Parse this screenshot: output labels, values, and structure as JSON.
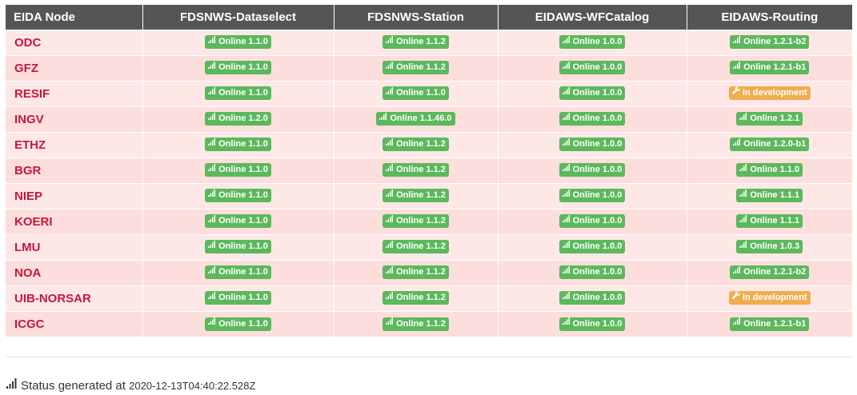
{
  "table": {
    "headers": [
      "EIDA Node",
      "FDSNWS-Dataselect",
      "FDSNWS-Station",
      "EIDAWS-WFCatalog",
      "EIDAWS-Routing"
    ],
    "rows": [
      {
        "node": "ODC",
        "cells": [
          {
            "text": "Online 1.1.0",
            "status": "online",
            "icon": "signal-icon"
          },
          {
            "text": "Online 1.1.2",
            "status": "online",
            "icon": "signal-icon"
          },
          {
            "text": "Online 1.0.0",
            "status": "online",
            "icon": "signal-icon"
          },
          {
            "text": "Online 1.2.1-b2",
            "status": "online",
            "icon": "signal-icon"
          }
        ]
      },
      {
        "node": "GFZ",
        "cells": [
          {
            "text": "Online 1.1.0",
            "status": "online",
            "icon": "signal-icon"
          },
          {
            "text": "Online 1.1.2",
            "status": "online",
            "icon": "signal-icon"
          },
          {
            "text": "Online 1.0.0",
            "status": "online",
            "icon": "signal-icon"
          },
          {
            "text": "Online 1.2.1-b1",
            "status": "online",
            "icon": "signal-icon"
          }
        ]
      },
      {
        "node": "RESIF",
        "cells": [
          {
            "text": "Online 1.1.0",
            "status": "online",
            "icon": "signal-icon"
          },
          {
            "text": "Online 1.1.0",
            "status": "online",
            "icon": "signal-icon"
          },
          {
            "text": "Online 1.0.0",
            "status": "online",
            "icon": "signal-icon"
          },
          {
            "text": "In development",
            "status": "dev",
            "icon": "wrench-icon"
          }
        ]
      },
      {
        "node": "INGV",
        "cells": [
          {
            "text": "Online 1.2.0",
            "status": "online",
            "icon": "signal-icon"
          },
          {
            "text": "Online 1.1.46.0",
            "status": "online",
            "icon": "signal-icon"
          },
          {
            "text": "Online 1.0.0",
            "status": "online",
            "icon": "signal-icon"
          },
          {
            "text": "Online 1.2.1",
            "status": "online",
            "icon": "signal-icon"
          }
        ]
      },
      {
        "node": "ETHZ",
        "cells": [
          {
            "text": "Online 1.1.0",
            "status": "online",
            "icon": "signal-icon"
          },
          {
            "text": "Online 1.1.2",
            "status": "online",
            "icon": "signal-icon"
          },
          {
            "text": "Online 1.0.0",
            "status": "online",
            "icon": "signal-icon"
          },
          {
            "text": "Online 1.2.0-b1",
            "status": "online",
            "icon": "signal-icon"
          }
        ]
      },
      {
        "node": "BGR",
        "cells": [
          {
            "text": "Online 1.1.0",
            "status": "online",
            "icon": "signal-icon"
          },
          {
            "text": "Online 1.1.2",
            "status": "online",
            "icon": "signal-icon"
          },
          {
            "text": "Online 1.0.0",
            "status": "online",
            "icon": "signal-icon"
          },
          {
            "text": "Online 1.1.0",
            "status": "online",
            "icon": "signal-icon"
          }
        ]
      },
      {
        "node": "NIEP",
        "cells": [
          {
            "text": "Online 1.1.0",
            "status": "online",
            "icon": "signal-icon"
          },
          {
            "text": "Online 1.1.2",
            "status": "online",
            "icon": "signal-icon"
          },
          {
            "text": "Online 1.0.0",
            "status": "online",
            "icon": "signal-icon"
          },
          {
            "text": "Online 1.1.1",
            "status": "online",
            "icon": "signal-icon"
          }
        ]
      },
      {
        "node": "KOERI",
        "cells": [
          {
            "text": "Online 1.1.0",
            "status": "online",
            "icon": "signal-icon"
          },
          {
            "text": "Online 1.1.2",
            "status": "online",
            "icon": "signal-icon"
          },
          {
            "text": "Online 1.0.0",
            "status": "online",
            "icon": "signal-icon"
          },
          {
            "text": "Online 1.1.1",
            "status": "online",
            "icon": "signal-icon"
          }
        ]
      },
      {
        "node": "LMU",
        "cells": [
          {
            "text": "Online 1.1.0",
            "status": "online",
            "icon": "signal-icon"
          },
          {
            "text": "Online 1.1.2",
            "status": "online",
            "icon": "signal-icon"
          },
          {
            "text": "Online 1.0.0",
            "status": "online",
            "icon": "signal-icon"
          },
          {
            "text": "Online 1.0.3",
            "status": "online",
            "icon": "signal-icon"
          }
        ]
      },
      {
        "node": "NOA",
        "cells": [
          {
            "text": "Online 1.1.0",
            "status": "online",
            "icon": "signal-icon"
          },
          {
            "text": "Online 1.1.2",
            "status": "online",
            "icon": "signal-icon"
          },
          {
            "text": "Online 1.0.0",
            "status": "online",
            "icon": "signal-icon"
          },
          {
            "text": "Online 1.2.1-b2",
            "status": "online",
            "icon": "signal-icon"
          }
        ]
      },
      {
        "node": "UIB-NORSAR",
        "cells": [
          {
            "text": "Online 1.1.0",
            "status": "online",
            "icon": "signal-icon"
          },
          {
            "text": "Online 1.1.2",
            "status": "online",
            "icon": "signal-icon"
          },
          {
            "text": "Online 1.0.0",
            "status": "online",
            "icon": "signal-icon"
          },
          {
            "text": "In development",
            "status": "dev",
            "icon": "wrench-icon"
          }
        ]
      },
      {
        "node": "ICGC",
        "cells": [
          {
            "text": "Online 1.1.0",
            "status": "online",
            "icon": "signal-icon"
          },
          {
            "text": "Online 1.1.2",
            "status": "online",
            "icon": "signal-icon"
          },
          {
            "text": "Online 1.0.0",
            "status": "online",
            "icon": "signal-icon"
          },
          {
            "text": "Online 1.2.1-b1",
            "status": "online",
            "icon": "signal-icon"
          }
        ]
      }
    ]
  },
  "footer": {
    "icon": "signal-icon",
    "label": "Status generated at",
    "timestamp": "2020-12-13T04:40:22.528Z"
  },
  "colors": {
    "header_bg": "#555555",
    "node_text": "#c7173e",
    "row_odd": "#fde8e7",
    "row_even": "#fcdedc",
    "online": "#5cb85c",
    "dev": "#f0ad4e"
  }
}
